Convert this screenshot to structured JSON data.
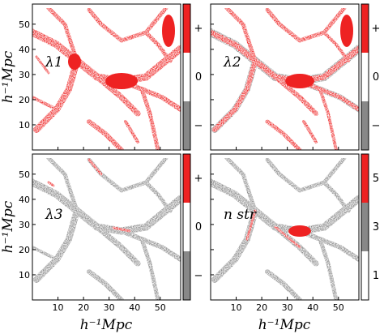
{
  "figure": {
    "y_axis_label": "h⁻¹Mpc",
    "x_axis_label": "h⁻¹Mpc",
    "x_ticks": [
      "10",
      "20",
      "30",
      "40",
      "50"
    ],
    "y_ticks": [
      "10",
      "20",
      "30",
      "40",
      "50"
    ],
    "colors": {
      "positive": "#ee2222",
      "zero": "#ffffff",
      "negative": "#888888",
      "frame": "#000000"
    }
  },
  "panels": [
    {
      "id": "lambda1",
      "label": "λ1",
      "colorbar": [
        "+",
        "0",
        "−"
      ],
      "dominant": "red"
    },
    {
      "id": "lambda2",
      "label": "λ2",
      "colorbar": [
        "+",
        "0",
        "−"
      ],
      "dominant": "red"
    },
    {
      "id": "lambda3",
      "label": "λ3",
      "colorbar": [
        "+",
        "0",
        "−"
      ],
      "dominant": "gray"
    },
    {
      "id": "nstr",
      "label": "n str",
      "colorbar": [
        "5",
        "3",
        "1"
      ],
      "dominant": "gray"
    }
  ],
  "chart_data": {
    "type": "heatmap",
    "x_range": [
      0,
      58
    ],
    "y_range": [
      0,
      58
    ],
    "x_ticks": [
      10,
      20,
      30,
      40,
      50
    ],
    "y_ticks": [
      10,
      20,
      30,
      40,
      50
    ]
  }
}
